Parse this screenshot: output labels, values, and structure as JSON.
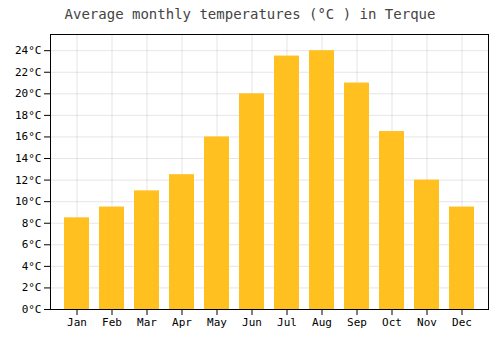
{
  "chart_data": {
    "type": "bar",
    "title": "Average monthly temperatures (°C ) in Terque",
    "categories": [
      "Jan",
      "Feb",
      "Mar",
      "Apr",
      "May",
      "Jun",
      "Jul",
      "Aug",
      "Sep",
      "Oct",
      "Nov",
      "Dec"
    ],
    "values": [
      8.5,
      9.5,
      11.0,
      12.5,
      16.0,
      20.0,
      23.5,
      24.0,
      21.0,
      16.5,
      12.0,
      9.5
    ],
    "color": "#FFC020",
    "ylim": [
      0,
      25.5
    ],
    "yticks": [
      {
        "value": 0,
        "label": "0°C"
      },
      {
        "value": 2,
        "label": "2°C"
      },
      {
        "value": 4,
        "label": "4°C"
      },
      {
        "value": 6,
        "label": "6°C"
      },
      {
        "value": 8,
        "label": "8°C"
      },
      {
        "value": 10,
        "label": "10°C"
      },
      {
        "value": 12,
        "label": "12°C"
      },
      {
        "value": 14,
        "label": "14°C"
      },
      {
        "value": 16,
        "label": "16°C"
      },
      {
        "value": 18,
        "label": "18°C"
      },
      {
        "value": 20,
        "label": "20°C"
      },
      {
        "value": 22,
        "label": "22°C"
      },
      {
        "value": 24,
        "label": "24°C"
      }
    ],
    "grid": true
  }
}
